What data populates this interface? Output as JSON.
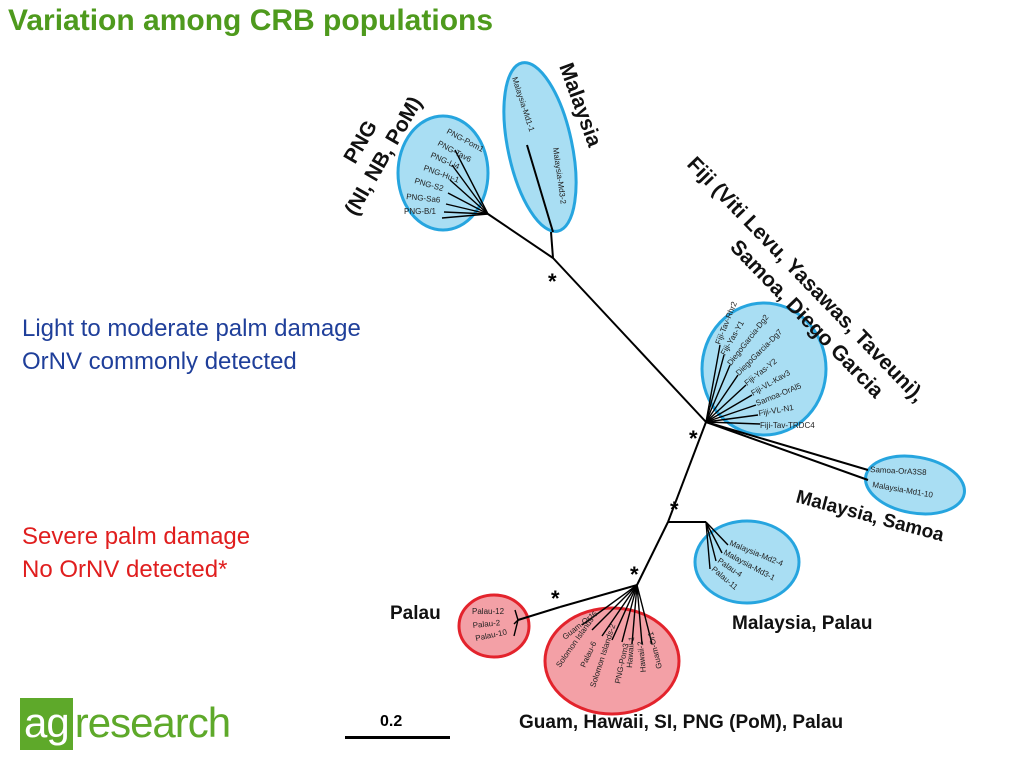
{
  "title": "Variation among CRB populations",
  "legend": {
    "light_line1": "Light to moderate palm damage",
    "light_line2": "OrNV commonly detected",
    "severe_line1": "Severe palm damage",
    "severe_line2": "No OrNV detected*"
  },
  "groups": {
    "png": {
      "line1": "PNG",
      "line2": "(NI, NB, PoM)",
      "leaves": [
        "PNG-Pom1",
        "PNG-Tav6",
        "PNG-Li4",
        "PNG-Hu-1",
        "PNG-S2",
        "PNG-Sa6",
        "PNG-B/1"
      ]
    },
    "malaysia": {
      "label": "Malaysia",
      "leaves": [
        "Malaysia-Md1-1",
        "Malaysia-Md3-2"
      ]
    },
    "fiji": {
      "line1": "Fiji (Viti Levu, Yasawas, Taveuni),",
      "line2": "Samoa, Diego Garcia",
      "leaves": [
        "Fiji-Tav-Rhr2",
        "Fiji-Yas-Y1",
        "DiegoGarcia-Dg2",
        "DiegoGarcia-Dg7",
        "Fiji-Yas-Y2",
        "Fiji-VL-Kav3",
        "Samoa-OrAl5",
        "Fiji-VL-N1",
        "Fiji-Tav-TRDC4"
      ]
    },
    "malaysia_samoa": {
      "label": "Malaysia, Samoa",
      "leaves": [
        "Samoa-OrA3S8",
        "Malaysia-Md1-10"
      ]
    },
    "malaysia_palau": {
      "label": "Malaysia, Palau",
      "leaves": [
        "Malaysia-Md2-4",
        "Malaysia-Md3-1",
        "Palau-4",
        "Palau-11"
      ]
    },
    "palau": {
      "label": "Palau",
      "leaves": [
        "Palau-12",
        "Palau-2",
        "Palau-10"
      ]
    },
    "guam": {
      "label": "Guam, Hawaii, SI, PNG (PoM), Palau",
      "leaves": [
        "Guam-Or1",
        "Solomon Islands-6",
        "Palau-6",
        "Solomon Islands-2",
        "PNG-Pom3",
        "Hawaii-1",
        "Hawaii-2",
        "Guam-Or1"
      ]
    }
  },
  "support_marker": "*",
  "scale_label": "0.2",
  "logo": {
    "part1": "ag",
    "part2": "research"
  },
  "colors": {
    "title": "#4e9a1d",
    "light_text": "#1f3f9a",
    "severe_text": "#e01e1e",
    "blue_fill": "#a9def3",
    "blue_stroke": "#26a5df",
    "red_fill": "#f3a0a6",
    "red_stroke": "#e3232c"
  }
}
